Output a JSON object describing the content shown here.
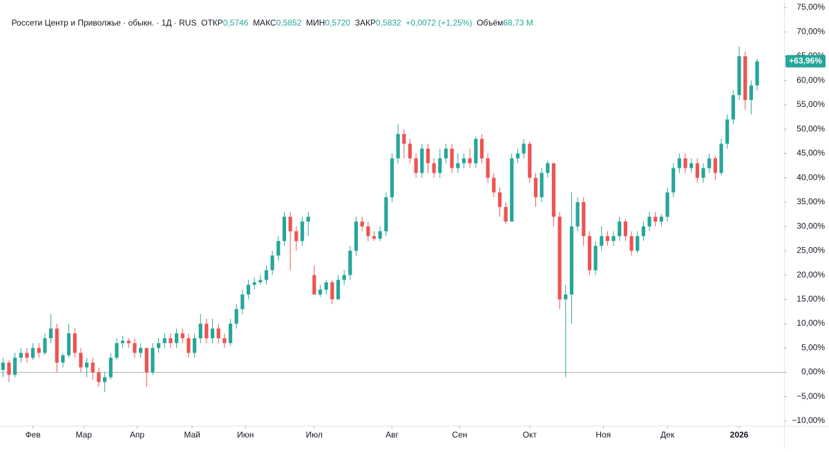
{
  "chart_data": {
    "type": "candlestick",
    "header": {
      "symbol": "Россети Центр и Приволжье · обыкн. · 1Д · RUS",
      "stats": [
        {
          "label": "ОТКР",
          "value": "0,5746"
        },
        {
          "label": "МАКС",
          "value": "0,5852"
        },
        {
          "label": "МИН",
          "value": "0,5720"
        },
        {
          "label": "ЗАКР",
          "value": "0,5832"
        }
      ],
      "change": "+0,0072 (+1,25%)",
      "volume_label": "Объём",
      "volume": "68,73 M"
    },
    "up_color": "#26a69a",
    "down_color": "#ef5350",
    "baseline": 0,
    "last_value_label": "+63,96%",
    "ylim": [
      -10,
      75
    ],
    "yticks": [
      {
        "value": 75,
        "label": "75,00%"
      },
      {
        "value": 70,
        "label": "70,00%"
      },
      {
        "value": 65,
        "label": "65,00%"
      },
      {
        "value": 60,
        "label": "60,00%"
      },
      {
        "value": 55,
        "label": "55,00%"
      },
      {
        "value": 50,
        "label": "50,00%"
      },
      {
        "value": 45,
        "label": "45,00%"
      },
      {
        "value": 40,
        "label": "40,00%"
      },
      {
        "value": 35,
        "label": "35,00%"
      },
      {
        "value": 30,
        "label": "30,00%"
      },
      {
        "value": 25,
        "label": "25,00%"
      },
      {
        "value": 20,
        "label": "20,00%"
      },
      {
        "value": 15,
        "label": "15,00%"
      },
      {
        "value": 10,
        "label": "10,00%"
      },
      {
        "value": 5,
        "label": "5,00%"
      },
      {
        "value": 0,
        "label": "0,00%"
      },
      {
        "value": -5,
        "label": "−5,00%"
      },
      {
        "value": -10,
        "label": "−10,00%"
      }
    ],
    "xlim": [
      -0.5,
      130.5
    ],
    "xticks": [
      {
        "value": 5,
        "label": "Фев"
      },
      {
        "value": 13.5,
        "label": "Мар"
      },
      {
        "value": 22.4,
        "label": "Апр"
      },
      {
        "value": 31.6,
        "label": "Май"
      },
      {
        "value": 40.5,
        "label": "Июн"
      },
      {
        "value": 52,
        "label": "Июл"
      },
      {
        "value": 65,
        "label": "Авг"
      },
      {
        "value": 76.3,
        "label": "Сен"
      },
      {
        "value": 88,
        "label": "Окт"
      },
      {
        "value": 100.3,
        "label": "Ноя"
      },
      {
        "value": 111,
        "label": "Дек"
      },
      {
        "value": 123,
        "label": "2026"
      }
    ],
    "candles": [
      [
        0.5,
        3,
        -1,
        2
      ],
      [
        2,
        2.5,
        -2,
        -0.5
      ],
      [
        -0.5,
        4,
        -1,
        3
      ],
      [
        3,
        5,
        2,
        4
      ],
      [
        4,
        5,
        2,
        3
      ],
      [
        3,
        6,
        2.5,
        5
      ],
      [
        5,
        6,
        3,
        4
      ],
      [
        4,
        8,
        3.5,
        7
      ],
      [
        7,
        12,
        6,
        9
      ],
      [
        9,
        10,
        0,
        2
      ],
      [
        2,
        4,
        1,
        3.5
      ],
      [
        3.5,
        10,
        3,
        8
      ],
      [
        8,
        9,
        3,
        4
      ],
      [
        4,
        5,
        0,
        1
      ],
      [
        1,
        3,
        -1,
        2
      ],
      [
        2,
        3,
        -1.5,
        0
      ],
      [
        0,
        1,
        -3,
        -2
      ],
      [
        -2,
        0,
        -4,
        -1
      ],
      [
        -1,
        4,
        -1.5,
        3
      ],
      [
        3,
        7,
        2.5,
        6
      ],
      [
        6,
        7.5,
        5,
        6.5
      ],
      [
        6.5,
        7,
        5,
        6
      ],
      [
        6,
        7,
        3,
        4
      ],
      [
        4,
        6,
        3,
        5
      ],
      [
        5,
        5,
        -3,
        0
      ],
      [
        0,
        6,
        -0.5,
        5
      ],
      [
        5,
        7,
        4,
        6
      ],
      [
        6,
        8,
        5,
        7
      ],
      [
        7,
        8,
        5,
        6
      ],
      [
        6,
        9,
        5,
        8
      ],
      [
        8,
        9,
        6,
        7
      ],
      [
        7,
        8,
        3,
        4
      ],
      [
        4,
        8,
        3,
        7
      ],
      [
        7,
        12,
        6,
        10
      ],
      [
        10,
        11,
        6,
        7
      ],
      [
        7,
        11,
        6,
        9
      ],
      [
        9,
        10,
        6,
        7
      ],
      [
        7,
        8,
        5,
        6
      ],
      [
        6,
        11,
        5.5,
        10
      ],
      [
        10,
        14,
        9,
        13
      ],
      [
        13,
        17,
        12,
        16
      ],
      [
        16,
        19,
        15,
        18
      ],
      [
        18,
        19.5,
        17,
        18.5
      ],
      [
        18.5,
        20,
        18,
        19
      ],
      [
        19,
        22,
        18,
        21
      ],
      [
        21,
        25,
        20,
        24
      ],
      [
        24,
        28,
        23,
        27
      ],
      [
        27,
        33,
        26,
        32
      ],
      [
        32,
        33,
        21,
        29
      ],
      [
        29,
        30,
        25,
        27
      ],
      [
        27,
        32,
        26,
        31
      ],
      [
        31,
        33,
        28,
        32
      ],
      [
        20,
        22,
        16,
        16
      ],
      [
        16,
        18,
        15.5,
        17
      ],
      [
        17,
        19,
        16,
        18.5
      ],
      [
        18.5,
        19,
        14,
        15
      ],
      [
        15,
        20,
        15,
        19
      ],
      [
        19,
        21,
        18,
        20
      ],
      [
        20,
        26,
        19,
        25
      ],
      [
        25,
        32,
        24,
        31
      ],
      [
        31,
        32,
        29,
        30
      ],
      [
        30,
        31,
        27,
        28
      ],
      [
        28,
        29,
        27,
        27.5
      ],
      [
        27.5,
        30,
        27,
        29
      ],
      [
        29,
        37,
        28,
        36
      ],
      [
        36,
        45,
        35,
        44
      ],
      [
        44,
        51,
        43,
        49
      ],
      [
        49,
        50,
        44,
        47
      ],
      [
        47,
        48,
        43,
        44
      ],
      [
        44,
        45,
        40,
        41
      ],
      [
        41,
        47,
        40,
        46
      ],
      [
        46,
        47,
        41,
        43
      ],
      [
        43,
        44,
        40,
        41
      ],
      [
        41,
        46,
        40,
        44
      ],
      [
        44,
        47,
        43,
        46
      ],
      [
        46,
        47,
        41,
        42
      ],
      [
        42,
        45,
        41,
        43
      ],
      [
        43,
        45,
        42,
        44
      ],
      [
        44,
        46,
        42,
        43
      ],
      [
        43,
        48.5,
        42,
        48
      ],
      [
        48,
        49,
        43,
        44
      ],
      [
        44,
        45,
        39,
        40
      ],
      [
        40,
        41,
        36,
        37
      ],
      [
        37,
        38,
        32,
        34
      ],
      [
        34,
        35,
        30.5,
        31
      ],
      [
        31,
        45,
        31,
        44
      ],
      [
        44,
        46,
        43,
        45
      ],
      [
        45,
        48,
        44,
        47
      ],
      [
        47,
        47.5,
        39,
        40
      ],
      [
        40,
        41,
        34,
        36
      ],
      [
        36,
        42,
        35,
        41
      ],
      [
        41,
        43.5,
        40,
        43
      ],
      [
        43,
        43,
        30,
        32
      ],
      [
        32,
        33,
        13,
        15
      ],
      [
        15,
        18,
        -1,
        16
      ],
      [
        16,
        37,
        10,
        30
      ],
      [
        30,
        36,
        29,
        35
      ],
      [
        35,
        36,
        26,
        28
      ],
      [
        28,
        29,
        20,
        21
      ],
      [
        21,
        27,
        20,
        26
      ],
      [
        26,
        30,
        25,
        28
      ],
      [
        28,
        29,
        26,
        27
      ],
      [
        27,
        29,
        26,
        28
      ],
      [
        28,
        32,
        27,
        31
      ],
      [
        31,
        31.5,
        27,
        28
      ],
      [
        28,
        29,
        24,
        25
      ],
      [
        25,
        29,
        24.5,
        28
      ],
      [
        28,
        31,
        27,
        30
      ],
      [
        30,
        33,
        29,
        32
      ],
      [
        32,
        33,
        30,
        31
      ],
      [
        31,
        32.5,
        30,
        32
      ],
      [
        32,
        38,
        31,
        37
      ],
      [
        37,
        43,
        36,
        42
      ],
      [
        42,
        45,
        41,
        44
      ],
      [
        44,
        45,
        41,
        42
      ],
      [
        42,
        44,
        41,
        43
      ],
      [
        43,
        44,
        39,
        40
      ],
      [
        40,
        43,
        39,
        42
      ],
      [
        42,
        45,
        41,
        44
      ],
      [
        44,
        44.5,
        39.5,
        41
      ],
      [
        41,
        48,
        40.5,
        47
      ],
      [
        47,
        53,
        46,
        52
      ],
      [
        52,
        58,
        51,
        57
      ],
      [
        57,
        67,
        56,
        65
      ],
      [
        65,
        66,
        54,
        56
      ],
      [
        56,
        60,
        53,
        59
      ],
      [
        59,
        64.5,
        58,
        63.96
      ]
    ]
  }
}
